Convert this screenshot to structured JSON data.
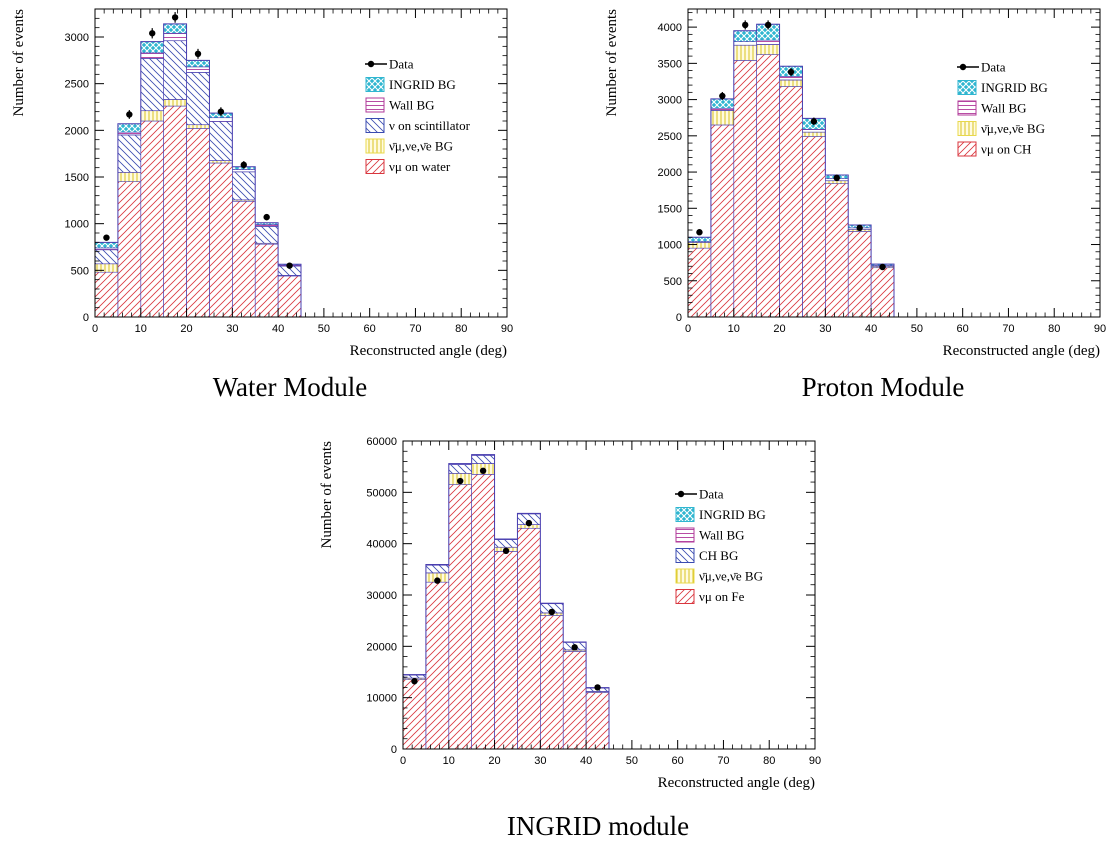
{
  "chart_data": [
    {
      "type": "bar",
      "caption": "Water Module",
      "xlabel": "Reconstructed angle (deg)",
      "ylabel": "Number of events",
      "xlim": [
        0,
        90
      ],
      "ylim": [
        0,
        3300
      ],
      "xticks": [
        0,
        10,
        20,
        30,
        40,
        50,
        60,
        70,
        80,
        90
      ],
      "yticks": [
        0,
        500,
        1000,
        1500,
        2000,
        2500,
        3000
      ],
      "bin_edges": [
        0,
        5,
        10,
        15,
        20,
        25,
        30,
        35,
        40,
        45,
        50,
        55,
        60,
        65,
        70,
        75,
        80,
        85,
        90
      ],
      "legend_position": "top-right",
      "legend": [
        {
          "key": "data",
          "label": "Data"
        },
        {
          "key": "ingrid",
          "label": "INGRID BG"
        },
        {
          "key": "wall",
          "label": "Wall BG"
        },
        {
          "key": "scint",
          "label": "ν on scintillator"
        },
        {
          "key": "anti",
          "label": "ν̄μ,νe,ν̄e BG"
        },
        {
          "key": "signal",
          "label": "νμ on water"
        }
      ],
      "series": [
        {
          "key": "signal",
          "values": [
            480,
            1450,
            2100,
            2260,
            2020,
            1650,
            1240,
            780,
            440,
            0,
            0,
            0,
            0,
            0,
            0,
            0,
            0,
            0
          ]
        },
        {
          "key": "anti",
          "values": [
            90,
            100,
            110,
            70,
            40,
            25,
            15,
            10,
            5,
            0,
            0,
            0,
            0,
            0,
            0,
            0,
            0,
            0
          ]
        },
        {
          "key": "scint",
          "values": [
            150,
            400,
            560,
            630,
            560,
            420,
            300,
            180,
            100,
            0,
            0,
            0,
            0,
            0,
            0,
            0,
            0,
            0
          ]
        },
        {
          "key": "wall",
          "values": [
            20,
            30,
            60,
            80,
            60,
            40,
            25,
            20,
            10,
            0,
            0,
            0,
            0,
            0,
            0,
            0,
            0,
            0
          ]
        },
        {
          "key": "ingrid",
          "values": [
            60,
            90,
            120,
            100,
            70,
            50,
            30,
            20,
            10,
            0,
            0,
            0,
            0,
            0,
            0,
            0,
            0,
            0
          ]
        }
      ],
      "data_points": {
        "x": [
          2.5,
          7.5,
          12.5,
          17.5,
          22.5,
          27.5,
          32.5,
          37.5,
          42.5
        ],
        "y": [
          850,
          2170,
          3040,
          3210,
          2820,
          2200,
          1630,
          1070,
          550
        ],
        "err": [
          30,
          47,
          55,
          57,
          53,
          47,
          40,
          33,
          23
        ]
      }
    },
    {
      "type": "bar",
      "caption": "Proton Module",
      "xlabel": "Reconstructed angle (deg)",
      "ylabel": "Number of events",
      "xlim": [
        0,
        90
      ],
      "ylim": [
        0,
        4250
      ],
      "xticks": [
        0,
        10,
        20,
        30,
        40,
        50,
        60,
        70,
        80,
        90
      ],
      "yticks": [
        0,
        500,
        1000,
        1500,
        2000,
        2500,
        3000,
        3500,
        4000
      ],
      "bin_edges": [
        0,
        5,
        10,
        15,
        20,
        25,
        30,
        35,
        40,
        45,
        50,
        55,
        60,
        65,
        70,
        75,
        80,
        85,
        90
      ],
      "legend_position": "top-right",
      "legend": [
        {
          "key": "data",
          "label": "Data"
        },
        {
          "key": "ingrid",
          "label": "INGRID BG"
        },
        {
          "key": "wall",
          "label": "Wall BG"
        },
        {
          "key": "anti",
          "label": "ν̄μ,νe,ν̄e BG"
        },
        {
          "key": "signal",
          "label": "νμ on CH"
        }
      ],
      "series": [
        {
          "key": "signal",
          "values": [
            950,
            2650,
            3540,
            3620,
            3180,
            2490,
            1840,
            1180,
            680,
            0,
            0,
            0,
            0,
            0,
            0,
            0,
            0,
            0
          ]
        },
        {
          "key": "anti",
          "values": [
            80,
            200,
            210,
            140,
            90,
            60,
            40,
            30,
            20,
            0,
            0,
            0,
            0,
            0,
            0,
            0,
            0,
            0
          ]
        },
        {
          "key": "wall",
          "values": [
            10,
            30,
            50,
            60,
            50,
            40,
            30,
            20,
            10,
            0,
            0,
            0,
            0,
            0,
            0,
            0,
            0,
            0
          ]
        },
        {
          "key": "ingrid",
          "values": [
            60,
            130,
            150,
            220,
            140,
            150,
            50,
            40,
            20,
            0,
            0,
            0,
            0,
            0,
            0,
            0,
            0,
            0
          ]
        }
      ],
      "data_points": {
        "x": [
          2.5,
          7.5,
          12.5,
          17.5,
          22.5,
          27.5,
          32.5,
          37.5,
          42.5
        ],
        "y": [
          1170,
          3050,
          4030,
          4030,
          3380,
          2700,
          1920,
          1230,
          690
        ],
        "err": [
          34,
          55,
          63,
          63,
          58,
          52,
          44,
          35,
          26
        ]
      }
    },
    {
      "type": "bar",
      "caption": "INGRID module",
      "xlabel": "Reconstructed angle (deg)",
      "ylabel": "Number of events",
      "xlim": [
        0,
        90
      ],
      "ylim": [
        0,
        60000
      ],
      "xticks": [
        0,
        10,
        20,
        30,
        40,
        50,
        60,
        70,
        80,
        90
      ],
      "yticks": [
        0,
        10000,
        20000,
        30000,
        40000,
        50000,
        60000
      ],
      "bin_edges": [
        0,
        5,
        10,
        15,
        20,
        25,
        30,
        35,
        40,
        45,
        50,
        55,
        60,
        65,
        70,
        75,
        80,
        85,
        90
      ],
      "legend_position": "top-right",
      "legend": [
        {
          "key": "data",
          "label": "Data"
        },
        {
          "key": "ingrid",
          "label": "INGRID BG"
        },
        {
          "key": "wall",
          "label": "Wall BG"
        },
        {
          "key": "chbg",
          "label": "CH BG"
        },
        {
          "key": "anti",
          "label": "ν̄μ,νe,ν̄e BG"
        },
        {
          "key": "signal",
          "label": "νμ on Fe"
        }
      ],
      "series": [
        {
          "key": "signal",
          "values": [
            13500,
            32500,
            51500,
            53500,
            38500,
            43000,
            26000,
            19000,
            11000,
            0,
            0,
            0,
            0,
            0,
            0,
            0,
            0,
            0
          ]
        },
        {
          "key": "anti",
          "values": [
            300,
            1800,
            2200,
            2100,
            800,
            700,
            500,
            300,
            200,
            0,
            0,
            0,
            0,
            0,
            0,
            0,
            0,
            0
          ]
        },
        {
          "key": "chbg",
          "values": [
            600,
            1500,
            1700,
            1600,
            1500,
            2100,
            1800,
            1500,
            700,
            0,
            0,
            0,
            0,
            0,
            0,
            0,
            0,
            0
          ]
        },
        {
          "key": "wall",
          "values": [
            100,
            150,
            200,
            150,
            100,
            100,
            100,
            50,
            50,
            0,
            0,
            0,
            0,
            0,
            0,
            0,
            0,
            0
          ]
        },
        {
          "key": "ingrid",
          "values": [
            0,
            0,
            0,
            0,
            0,
            0,
            0,
            0,
            0,
            0,
            0,
            0,
            0,
            0,
            0,
            0,
            0,
            0
          ]
        }
      ],
      "data_points": {
        "x": [
          2.5,
          7.5,
          12.5,
          17.5,
          22.5,
          27.5,
          32.5,
          37.5,
          42.5
        ],
        "y": [
          13200,
          32800,
          52200,
          54200,
          38600,
          44000,
          26700,
          19800,
          12000
        ],
        "err": [
          115,
          181,
          228,
          233,
          196,
          210,
          163,
          141,
          110
        ]
      }
    }
  ],
  "style": {
    "colors": {
      "signal": "#d9363e",
      "anti": "#e8d84a",
      "scint": "#3a4bb0",
      "chbg": "#3a4bb0",
      "wall": "#b0389a",
      "ingrid": "#2fb6d0",
      "outline": "#4a3fb0",
      "data": "#000000"
    }
  }
}
